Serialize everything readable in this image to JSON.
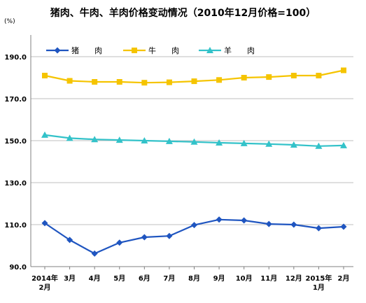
{
  "chart_data": {
    "type": "line",
    "title": "猪肉、牛肉、羊肉价格变动情况（2010年12月价格=100）",
    "unit": "(%)",
    "ylim": [
      90,
      190
    ],
    "yticks": [
      "190.0",
      "170.0",
      "150.0",
      "130.0",
      "110.0",
      "90.0"
    ],
    "ytick_values": [
      190,
      170,
      150,
      130,
      110,
      90
    ],
    "grid": true,
    "legend_position": "top-left",
    "categories": [
      [
        "2014年",
        "2月"
      ],
      [
        "3月"
      ],
      [
        "4月"
      ],
      [
        "5月"
      ],
      [
        "6月"
      ],
      [
        "7月"
      ],
      [
        "8月"
      ],
      [
        "9月"
      ],
      [
        "10月"
      ],
      [
        "11月"
      ],
      [
        "12月"
      ],
      [
        "2015年",
        "1月"
      ],
      [
        "2月"
      ]
    ],
    "series": [
      {
        "name": "猪　　肉",
        "color": "#1F55C0",
        "marker": "diamond",
        "values": [
          110.7,
          102.7,
          96.2,
          101.4,
          104.0,
          104.6,
          109.8,
          112.4,
          112.0,
          110.3,
          110.0,
          108.3,
          109.0
        ]
      },
      {
        "name": "牛　　肉",
        "color": "#F5C400",
        "marker": "square",
        "values": [
          181.0,
          178.5,
          178.0,
          178.0,
          177.6,
          177.8,
          178.3,
          178.9,
          180.0,
          180.3,
          181.0,
          181.0,
          183.5
        ]
      },
      {
        "name": "羊　　肉",
        "color": "#33C2C9",
        "marker": "triangle",
        "values": [
          152.7,
          151.2,
          150.6,
          150.3,
          150.0,
          149.7,
          149.4,
          149.0,
          148.7,
          148.4,
          148.0,
          147.4,
          147.7
        ]
      }
    ]
  }
}
